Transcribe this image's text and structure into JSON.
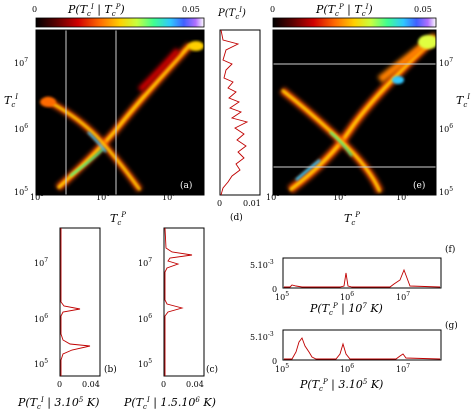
{
  "figure": {
    "colorbar_left": {
      "title": "P(T_c^I | T_c^P)",
      "min_label": "0",
      "max_label": "0.05"
    },
    "colorbar_right": {
      "title": "P(T_c^P | T_c^I)",
      "min_label": "0",
      "max_label": "0.05"
    },
    "colormap": [
      "#000000",
      "#3a0000",
      "#b00000",
      "#ff3000",
      "#ff9000",
      "#ffe000",
      "#e0ff40",
      "#40ff80",
      "#30c0ff",
      "#4060ff",
      "#a060ff",
      "#ffffff"
    ],
    "panels": {
      "a": {
        "label": "(a)",
        "xlabel": "T_c^P",
        "ylabel": "T_c^I",
        "x_ticks": [
          "10^5",
          "10^6",
          "10^7"
        ],
        "y_ticks": [
          "10^5",
          "10^6",
          "10^7"
        ]
      },
      "d": {
        "label": "(d)",
        "title": "P(T_c^I)",
        "x_ticks": [
          "0",
          "0.01"
        ]
      },
      "e": {
        "label": "(e)",
        "xlabel": "T_c^P",
        "ylabel": "T_c^I",
        "x_ticks": [
          "10^5",
          "10^6",
          "10^7"
        ],
        "y_ticks": [
          "10^5",
          "10^6",
          "10^7"
        ]
      },
      "b": {
        "label": "(b)",
        "x_ticks": [
          "0",
          "0.04"
        ],
        "y_ticks": [
          "10^5",
          "10^6",
          "10^7"
        ],
        "caption": "P(T_c^I | 3.10^5 K)"
      },
      "c": {
        "label": "(c)",
        "x_ticks": [
          "0",
          "0.04"
        ],
        "y_ticks": [
          "10^5",
          "10^6",
          "10^7"
        ],
        "caption": "P(T_c^I | 1.5.10^6 K)"
      },
      "f": {
        "label": "(f)",
        "y_ticks": [
          "0",
          "5.10^-3"
        ],
        "x_ticks": [
          "10^5",
          "10^6",
          "10^7"
        ],
        "caption": "P(T_c^P | 10^7 K)"
      },
      "g": {
        "label": "(g)",
        "y_ticks": [
          "0",
          "5.10^-3"
        ],
        "x_ticks": [
          "10^5",
          "10^6",
          "10^7"
        ],
        "caption": "P(T_c^P | 3.10^5 K)"
      }
    }
  }
}
